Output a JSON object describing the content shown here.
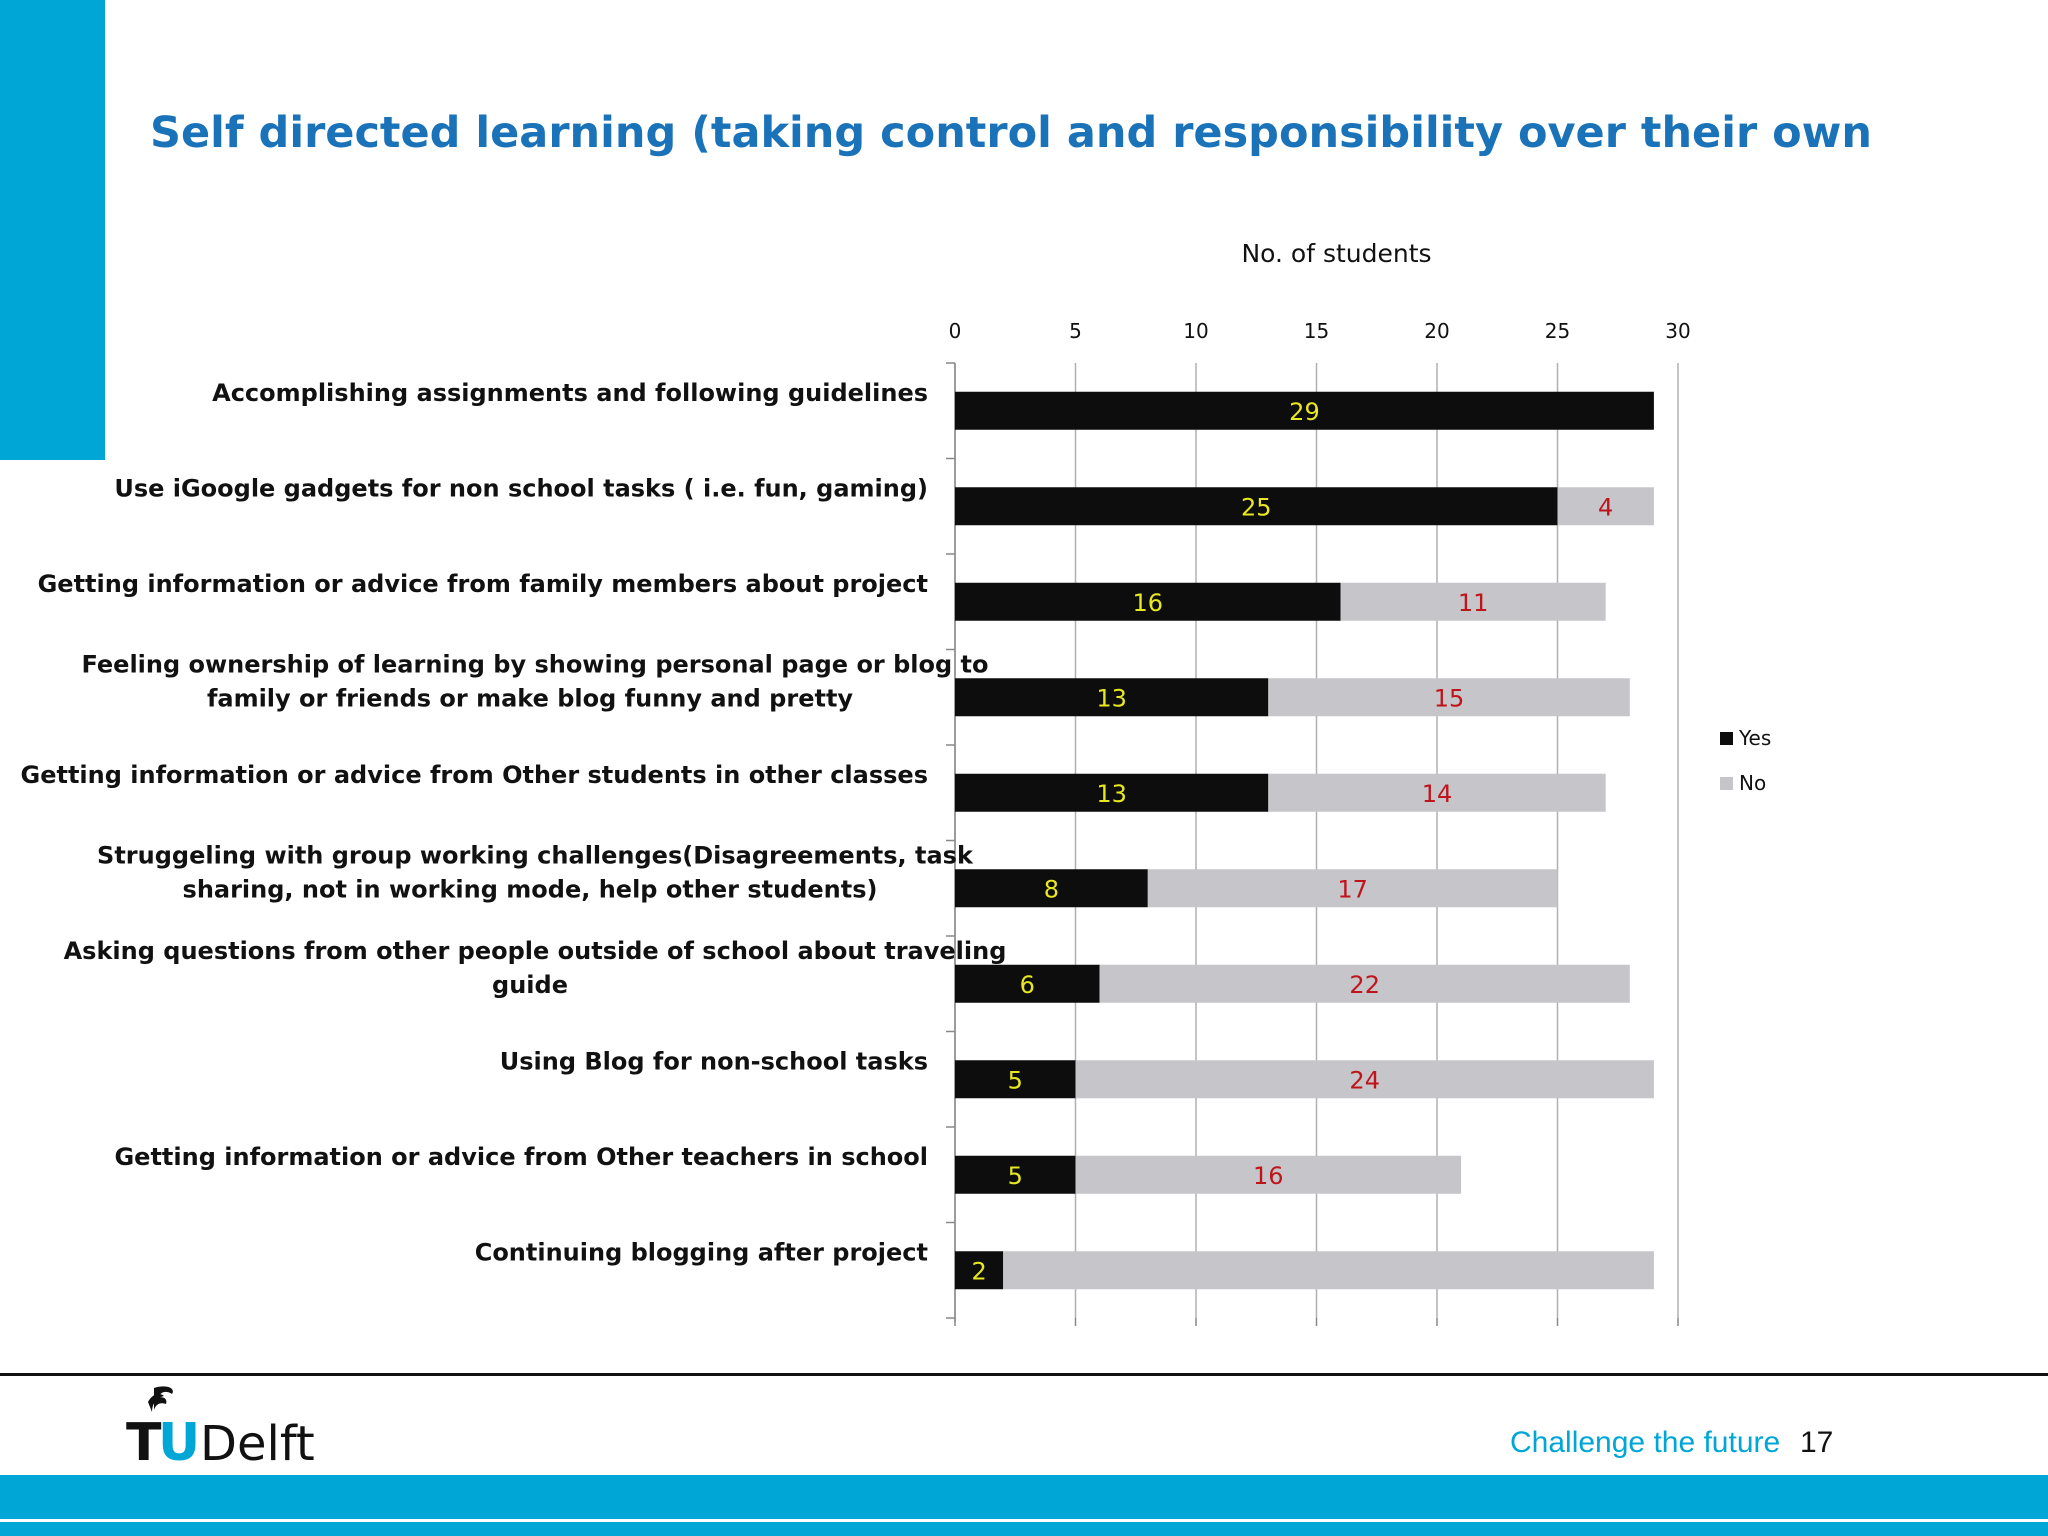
{
  "slide": {
    "title": "Self directed learning (taking control and responsibility over their own",
    "tagline": "Challenge the future",
    "page_number": "17",
    "logo_text": "TUDelft",
    "colors": {
      "accent": "#00a6d6",
      "title": "#1a72b8",
      "yes_label": "#e8e820",
      "no_label": "#c0141c"
    }
  },
  "chart_data": {
    "type": "bar",
    "orientation": "horizontal",
    "stacked": true,
    "title": "No. of students",
    "xlim": [
      0,
      30
    ],
    "ticks": [
      0,
      5,
      10,
      15,
      20,
      25,
      30
    ],
    "grid": true,
    "legend_position": "right",
    "categories": [
      [
        "Accomplishing assignments and following guidelines"
      ],
      [
        "Use iGoogle gadgets for non school tasks ( i.e. fun, gaming)"
      ],
      [
        "Getting information or advice  from  family members about project"
      ],
      [
        "Feeling ownership of learning by showing  personal page or blog to",
        "family or friends or make  blog funny and pretty"
      ],
      [
        "Getting information or advice from Other students in other classes"
      ],
      [
        "Struggeling with group working challenges(Disagreements, task",
        "sharing, not in working mode, help other students)"
      ],
      [
        "Asking questions from other people outside of school about traveling",
        "guide"
      ],
      [
        "Using Blog for non-school tasks"
      ],
      [
        "Getting information or advice from  Other teachers in school"
      ],
      [
        "Continuing blogging after project"
      ]
    ],
    "series": [
      {
        "name": "Yes",
        "color": "#0d0d0d",
        "label_color": "#e8e820",
        "values": [
          29,
          25,
          16,
          13,
          13,
          8,
          6,
          5,
          5,
          2
        ]
      },
      {
        "name": "No",
        "color": "#c6c5c9",
        "label_color": "#c0141c",
        "values": [
          0,
          4,
          11,
          15,
          14,
          17,
          22,
          24,
          16,
          27
        ]
      }
    ],
    "data_labels": {
      "Yes": [
        "29",
        "25",
        "16",
        "13",
        "13",
        "8",
        "6",
        "5",
        "5",
        "2"
      ],
      "No": [
        "",
        "4",
        "11",
        "15",
        "14",
        "17",
        "22",
        "24",
        "16",
        ""
      ]
    }
  }
}
